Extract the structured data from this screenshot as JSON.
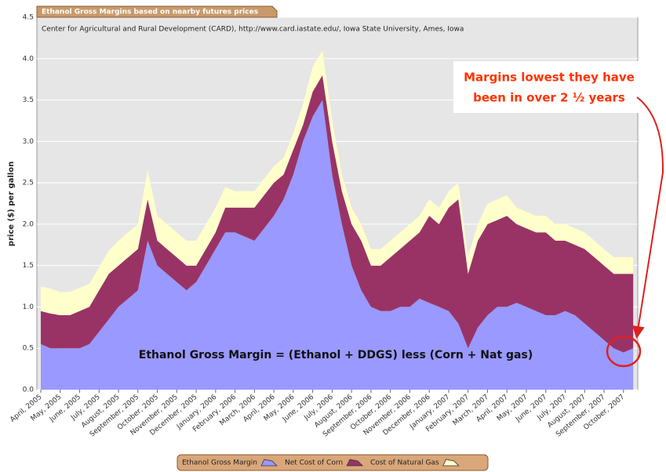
{
  "chart_data": {
    "type": "stacked_area",
    "title": "Ethanol Gross Margins based on nearby futures prices",
    "subtitle": "Center for Agricultural and Rural Development (CARD), http://www.card.iastate.edu/, Iowa State University, Ames, Iowa",
    "y_label": "price ($) per gallon",
    "annotations": [
      "Margins lowest they have",
      "been in over 2 ½ years",
      "Ethanol Gross Margin = (Ethanol + DDGS) less (Corn + Nat gas)"
    ],
    "categories": [
      "April, 2005",
      null,
      "May, 2005",
      null,
      "June, 2005",
      null,
      "July, 2005",
      null,
      "August, 2005",
      null,
      "September, 2005",
      null,
      "October, 2005",
      null,
      "November, 2005",
      null,
      "December, 2005",
      null,
      "January, 2006",
      null,
      "February, 2006",
      null,
      "March, 2006",
      null,
      "April, 2006",
      null,
      "May, 2006",
      null,
      "June, 2006",
      null,
      "July, 2006",
      null,
      "August, 2006",
      null,
      "September, 2006",
      null,
      "October, 2006",
      null,
      "November, 2006",
      null,
      "December, 2006",
      null,
      "January, 2007",
      null,
      "February, 2007",
      null,
      "March, 2007",
      null,
      "April, 2007",
      null,
      "May, 2007",
      null,
      "June, 2007",
      null,
      "July, 2007",
      null,
      "August, 2007",
      null,
      "September, 2007",
      null,
      "October, 2007",
      null
    ],
    "series": [
      {
        "name": "Ethanol Gross Margin",
        "color": "#9999ff",
        "values": [
          0.55,
          0.5,
          0.5,
          0.5,
          0.5,
          0.55,
          0.7,
          0.85,
          1.0,
          1.1,
          1.2,
          1.8,
          1.5,
          1.4,
          1.3,
          1.2,
          1.3,
          1.5,
          1.7,
          1.9,
          1.9,
          1.85,
          1.8,
          1.95,
          2.1,
          2.3,
          2.6,
          3.0,
          3.3,
          3.5,
          2.6,
          2.0,
          1.5,
          1.2,
          1.0,
          0.95,
          0.95,
          1.0,
          1.0,
          1.1,
          1.05,
          1.0,
          0.95,
          0.8,
          0.5,
          0.75,
          0.9,
          1.0,
          1.0,
          1.05,
          1.0,
          0.95,
          0.9,
          0.9,
          0.95,
          0.9,
          0.8,
          0.7,
          0.6,
          0.5,
          0.45,
          0.5
        ]
      },
      {
        "name": "Net Cost of Corn",
        "color": "#993366",
        "values": [
          0.4,
          0.42,
          0.4,
          0.4,
          0.45,
          0.45,
          0.5,
          0.55,
          0.5,
          0.5,
          0.5,
          0.5,
          0.3,
          0.3,
          0.3,
          0.3,
          0.2,
          0.2,
          0.2,
          0.3,
          0.3,
          0.35,
          0.4,
          0.4,
          0.4,
          0.3,
          0.3,
          0.2,
          0.3,
          0.3,
          0.4,
          0.4,
          0.5,
          0.6,
          0.5,
          0.55,
          0.65,
          0.7,
          0.8,
          0.8,
          1.05,
          1.0,
          1.25,
          1.5,
          0.9,
          1.05,
          1.1,
          1.05,
          1.1,
          0.95,
          0.95,
          0.95,
          1.0,
          0.9,
          0.85,
          0.85,
          0.9,
          0.9,
          0.9,
          0.9,
          0.95,
          0.9
        ]
      },
      {
        "name": "Cost of Natural Gas",
        "color": "#ffffcc",
        "values": [
          0.3,
          0.3,
          0.28,
          0.28,
          0.28,
          0.28,
          0.28,
          0.28,
          0.3,
          0.3,
          0.3,
          0.35,
          0.3,
          0.3,
          0.3,
          0.3,
          0.3,
          0.3,
          0.3,
          0.25,
          0.2,
          0.2,
          0.2,
          0.2,
          0.2,
          0.2,
          0.2,
          0.25,
          0.3,
          0.3,
          0.25,
          0.2,
          0.2,
          0.2,
          0.2,
          0.2,
          0.2,
          0.2,
          0.2,
          0.2,
          0.2,
          0.2,
          0.2,
          0.2,
          0.2,
          0.2,
          0.25,
          0.25,
          0.25,
          0.2,
          0.2,
          0.2,
          0.2,
          0.2,
          0.2,
          0.2,
          0.2,
          0.2,
          0.2,
          0.2,
          0.2,
          0.2
        ]
      }
    ],
    "ylim": [
      0,
      4.5
    ],
    "yticks": [
      {
        "value": 0,
        "label": "0.0"
      },
      {
        "value": 0.5,
        "label": "0.5"
      },
      {
        "value": 1,
        "label": "1.0"
      },
      {
        "value": 1.5,
        "label": "1.5"
      },
      {
        "value": 2,
        "label": "2.0"
      },
      {
        "value": 2.5,
        "label": "2.5"
      },
      {
        "value": 3,
        "label": "3.0"
      },
      {
        "value": 3.5,
        "label": "3.5"
      },
      {
        "value": 4,
        "label": "4.0"
      },
      {
        "value": 4.5,
        "label": "4.5"
      }
    ],
    "grid": true,
    "legend": "bottom"
  }
}
